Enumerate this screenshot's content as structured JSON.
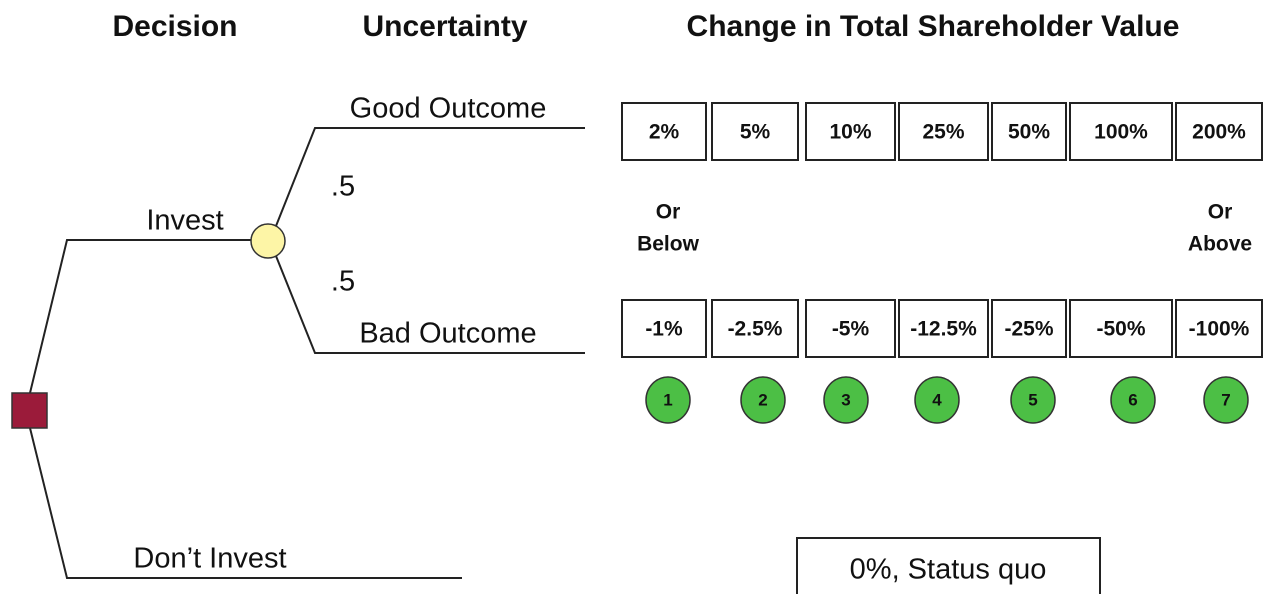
{
  "headers": {
    "decision": "Decision",
    "uncertainty": "Uncertainty",
    "change": "Change in Total Shareholder Value"
  },
  "tree": {
    "invest": "Invest",
    "dont_invest": "Don’t Invest",
    "good_outcome": "Good Outcome",
    "bad_outcome": "Bad Outcome",
    "good_probability": ".5",
    "bad_probability": ".5"
  },
  "good_values": [
    "2%",
    "5%",
    "10%",
    "25%",
    "50%",
    "100%",
    "200%"
  ],
  "bad_values": [
    "-1%",
    "-2.5%",
    "-5%",
    "-12.5%",
    "-25%",
    "-50%",
    "-100%"
  ],
  "or_below": [
    "Or",
    "Below"
  ],
  "or_above": [
    "Or",
    "Above"
  ],
  "scale": [
    "1",
    "2",
    "3",
    "4",
    "5",
    "6",
    "7"
  ],
  "status_quo": "0%, Status quo"
}
